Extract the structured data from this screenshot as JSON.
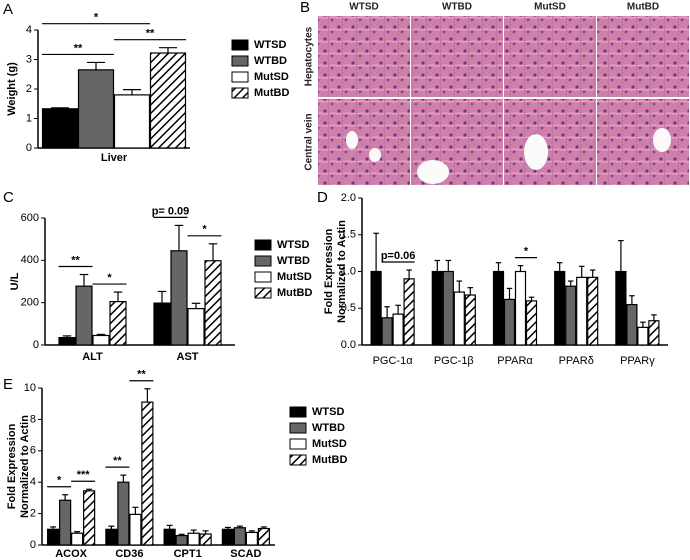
{
  "panel_labels": [
    "A",
    "B",
    "C",
    "D",
    "E"
  ],
  "histology": {
    "columns": [
      "WTSD",
      "WTBD",
      "MutSD",
      "MutBD"
    ],
    "rows": [
      "Hepatocytes",
      "Central vein"
    ]
  },
  "chart_data": [
    {
      "type": "bar",
      "y_label": "Weight (g)",
      "categories": [
        "Liver"
      ],
      "series": [
        {
          "name": "WTSD",
          "color": "#000000",
          "values": [
            1.33
          ],
          "errors": [
            0.03
          ]
        },
        {
          "name": "WTBD",
          "color": "#666666",
          "values": [
            2.65
          ],
          "errors": [
            0.25
          ]
        },
        {
          "name": "MutSD",
          "color": "#ffffff",
          "values": [
            1.8
          ],
          "errors": [
            0.18
          ]
        },
        {
          "name": "MutBD",
          "color": "#ffffff",
          "hatch": true,
          "values": [
            3.22
          ],
          "errors": [
            0.18
          ]
        }
      ],
      "ylim": [
        0,
        4
      ],
      "yticks": [
        0,
        1,
        2,
        3,
        4
      ],
      "legend": "right",
      "annotations": [
        {
          "text": "**",
          "category": 0,
          "from": 0,
          "to": 1
        },
        {
          "text": "**",
          "category": 0,
          "from": 2,
          "to": 3
        },
        {
          "text": "*",
          "category": 0,
          "from": 0,
          "to": 2
        }
      ]
    },
    {
      "type": "bar",
      "y_label": "U/L",
      "categories": [
        "ALT",
        "AST"
      ],
      "series": [
        {
          "name": "WTSD",
          "color": "#000000",
          "values": [
            35,
            198
          ],
          "errors": [
            8,
            55
          ]
        },
        {
          "name": "WTBD",
          "color": "#666666",
          "values": [
            278,
            445
          ],
          "errors": [
            55,
            120
          ]
        },
        {
          "name": "MutSD",
          "color": "#ffffff",
          "values": [
            45,
            172
          ],
          "errors": [
            5,
            25
          ]
        },
        {
          "name": "MutBD",
          "color": "#ffffff",
          "hatch": true,
          "values": [
            205,
            398
          ],
          "errors": [
            45,
            80
          ]
        }
      ],
      "ylim": [
        0,
        600
      ],
      "yticks": [
        0,
        200,
        400,
        600
      ],
      "legend": "right",
      "annotations": [
        {
          "text": "**",
          "category": 0,
          "from": 0,
          "to": 1
        },
        {
          "text": "*",
          "category": 0,
          "from": 2,
          "to": 3
        },
        {
          "text": "p= 0.09",
          "category": 1,
          "from": 0,
          "to": 1
        },
        {
          "text": "*",
          "category": 1,
          "from": 2,
          "to": 3
        }
      ]
    },
    {
      "type": "bar",
      "y_label": [
        "Fold Expression",
        "Normalized to Actin"
      ],
      "categories": [
        "PGC-1α",
        "PGC-1β",
        "PPARα",
        "PPARδ",
        "PPARγ"
      ],
      "series": [
        {
          "color": "#000000",
          "values": [
            1.0,
            1.0,
            1.0,
            1.0,
            1.0
          ],
          "errors": [
            0.52,
            0.15,
            0.12,
            0.12,
            0.42
          ]
        },
        {
          "color": "#666666",
          "values": [
            0.37,
            1.0,
            0.62,
            0.8,
            0.55
          ],
          "errors": [
            0.15,
            0.15,
            0.15,
            0.07,
            0.12
          ]
        },
        {
          "color": "#ffffff",
          "values": [
            0.42,
            0.72,
            1.0,
            0.92,
            0.24
          ],
          "errors": [
            0.12,
            0.15,
            0.08,
            0.15,
            0.07
          ]
        },
        {
          "color": "#ffffff",
          "hatch": true,
          "values": [
            0.9,
            0.68,
            0.6,
            0.92,
            0.33
          ],
          "errors": [
            0.12,
            0.1,
            0.05,
            0.1,
            0.08
          ]
        }
      ],
      "ylim": [
        0,
        2
      ],
      "yticks": [
        {
          "value": 0,
          "label": "0.0"
        },
        {
          "value": 0.5,
          "label": "0.5"
        },
        {
          "value": 1,
          "label": "1.0"
        },
        {
          "value": 1.5,
          "label": "1.5"
        },
        {
          "value": 2,
          "label": "2.0"
        }
      ],
      "annotations": [
        {
          "text": "p=0.06",
          "category": 0,
          "from": 1,
          "to": 3
        },
        {
          "text": "*",
          "category": 2,
          "from": 2,
          "to": 3
        }
      ]
    },
    {
      "type": "bar",
      "y_label": [
        "Fold Expression",
        "Normalized to Actin"
      ],
      "categories": [
        "ACOX",
        "CD36",
        "CPT1",
        "SCAD"
      ],
      "series": [
        {
          "name": "WTSD",
          "color": "#000000",
          "values": [
            1.0,
            1.0,
            1.0,
            1.0
          ],
          "errors": [
            0.15,
            0.2,
            0.25,
            0.12
          ]
        },
        {
          "name": "WTBD",
          "color": "#666666",
          "values": [
            2.85,
            4.0,
            0.6,
            1.1
          ],
          "errors": [
            0.35,
            0.45,
            0.08,
            0.1
          ]
        },
        {
          "name": "MutSD",
          "color": "#ffffff",
          "values": [
            0.75,
            1.95,
            0.75,
            0.8
          ],
          "errors": [
            0.1,
            0.45,
            0.2,
            0.1
          ]
        },
        {
          "name": "MutBD",
          "color": "#ffffff",
          "hatch": true,
          "values": [
            3.45,
            9.1,
            0.7,
            1.05
          ],
          "errors": [
            0.1,
            0.85,
            0.2,
            0.1
          ]
        }
      ],
      "ylim": [
        0,
        10
      ],
      "yticks": [
        0,
        2,
        4,
        6,
        8,
        10
      ],
      "legend": "right",
      "annotations": [
        {
          "text": "*",
          "category": 0,
          "from": 0,
          "to": 1
        },
        {
          "text": "***",
          "category": 0,
          "from": 2,
          "to": 3
        },
        {
          "text": "**",
          "category": 1,
          "from": 0,
          "to": 1
        },
        {
          "text": "**",
          "category": 1,
          "from": 2,
          "to": 3
        }
      ]
    }
  ]
}
